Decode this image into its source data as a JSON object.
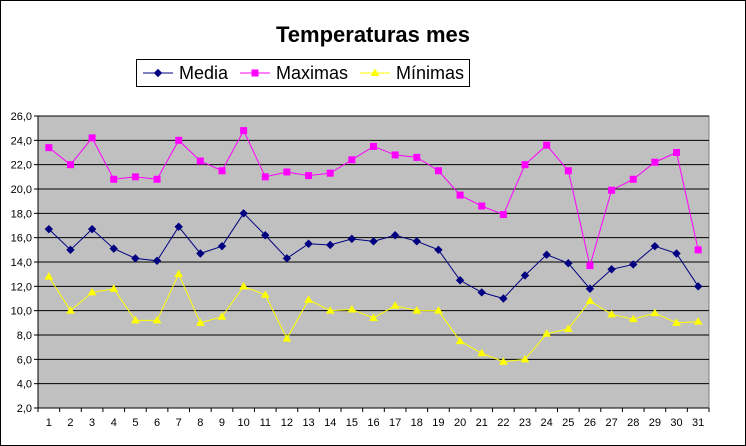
{
  "chart_data": {
    "type": "line",
    "title": "Temperaturas mes",
    "xlabel": "",
    "ylabel": "",
    "categories": [
      "1",
      "2",
      "3",
      "4",
      "5",
      "6",
      "7",
      "8",
      "9",
      "10",
      "11",
      "12",
      "13",
      "14",
      "15",
      "16",
      "17",
      "18",
      "19",
      "20",
      "21",
      "22",
      "23",
      "24",
      "25",
      "26",
      "27",
      "28",
      "29",
      "30",
      "31"
    ],
    "ylim": [
      2.0,
      26.0
    ],
    "ytick_step": 2.0,
    "ytick_labels": [
      "2,0",
      "4,0",
      "6,0",
      "8,0",
      "10,0",
      "12,0",
      "14,0",
      "16,0",
      "18,0",
      "20,0",
      "22,0",
      "24,0",
      "26,0"
    ],
    "grid": true,
    "plot_background": "#c0c0c0",
    "legend_position": "top",
    "series": [
      {
        "name": "Media",
        "color": "#000080",
        "marker": "diamond",
        "values": [
          16.7,
          15.0,
          16.7,
          15.1,
          14.3,
          14.1,
          16.9,
          14.7,
          15.3,
          18.0,
          16.2,
          14.3,
          15.5,
          15.4,
          15.9,
          15.7,
          16.2,
          15.7,
          15.0,
          12.5,
          11.5,
          11.0,
          12.9,
          14.6,
          13.9,
          11.8,
          13.4,
          13.8,
          15.3,
          14.7,
          12.0
        ]
      },
      {
        "name": "Maximas",
        "color": "#ff00ff",
        "marker": "square",
        "values": [
          23.4,
          22.0,
          24.2,
          20.8,
          21.0,
          20.8,
          24.0,
          22.3,
          21.5,
          24.8,
          21.0,
          21.4,
          21.1,
          21.3,
          22.4,
          23.5,
          22.8,
          22.6,
          21.5,
          19.5,
          18.6,
          17.9,
          22.0,
          23.6,
          21.5,
          13.7,
          19.9,
          20.8,
          22.2,
          23.0,
          15.0
        ]
      },
      {
        "name": "Mínimas",
        "color": "#ffff00",
        "marker": "triangle",
        "values": [
          12.8,
          10.0,
          11.5,
          11.8,
          9.2,
          9.2,
          13.0,
          9.0,
          9.5,
          12.0,
          11.3,
          7.7,
          10.9,
          10.0,
          10.1,
          9.4,
          10.4,
          10.0,
          10.0,
          7.5,
          6.5,
          5.8,
          6.0,
          8.1,
          8.5,
          10.8,
          9.7,
          9.3,
          9.8,
          9.0,
          9.1
        ]
      }
    ]
  }
}
